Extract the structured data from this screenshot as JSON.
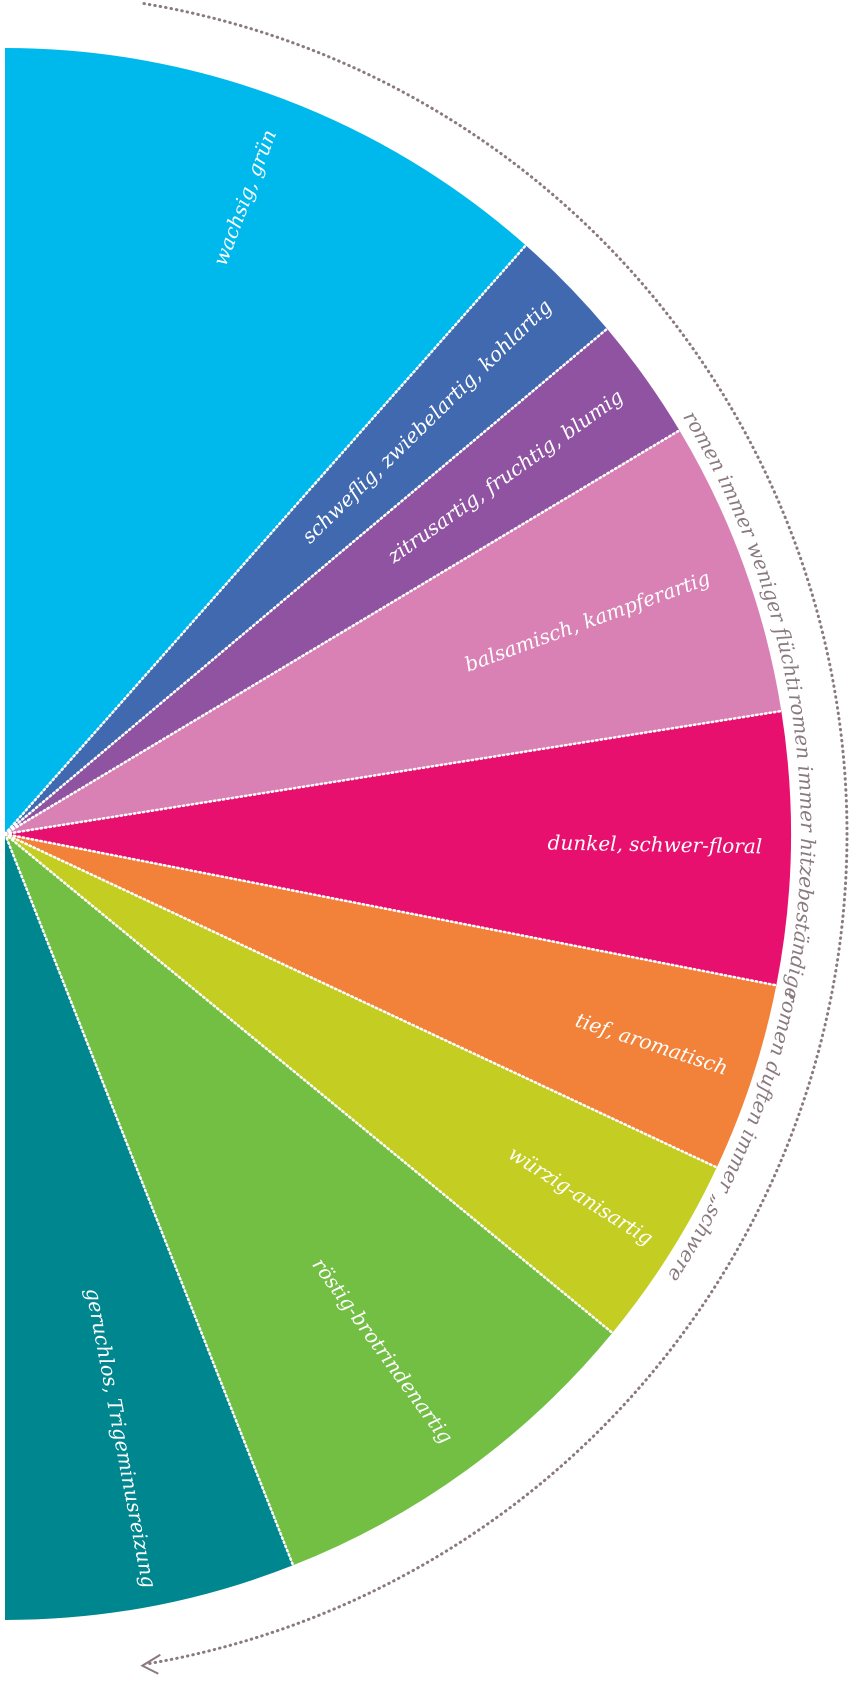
{
  "segments": [
    {
      "label": "wachsig, grün",
      "color": "#00b9ec"
    },
    {
      "label": "schweflig, zwiebelartig, kohlartig",
      "color": "#4169b0"
    },
    {
      "label": "zitrusartig, fruchtig, blumig",
      "color": "#8f53a1"
    },
    {
      "label": "balsamisch, kampferartig",
      "color": "#d981b4"
    },
    {
      "label": "dunkel, schwer-floral",
      "color": "#e8106e"
    },
    {
      "label": "tief, aromatisch",
      "color": "#f28239"
    },
    {
      "label": "würzig-anisartig",
      "color": "#c3cd22"
    },
    {
      "label": "röstig-brotrindenartig",
      "color": "#72bf44"
    },
    {
      "label": "geruchlos, Trigeminusreizung",
      "color": "#00868f"
    }
  ],
  "arc_labels": [
    "Aromen immer weniger flüchtig",
    "Aromen immer hitzebeständiger",
    "Aromen duften immer „schwerer“"
  ],
  "arc_color": "#8a7a7f"
}
